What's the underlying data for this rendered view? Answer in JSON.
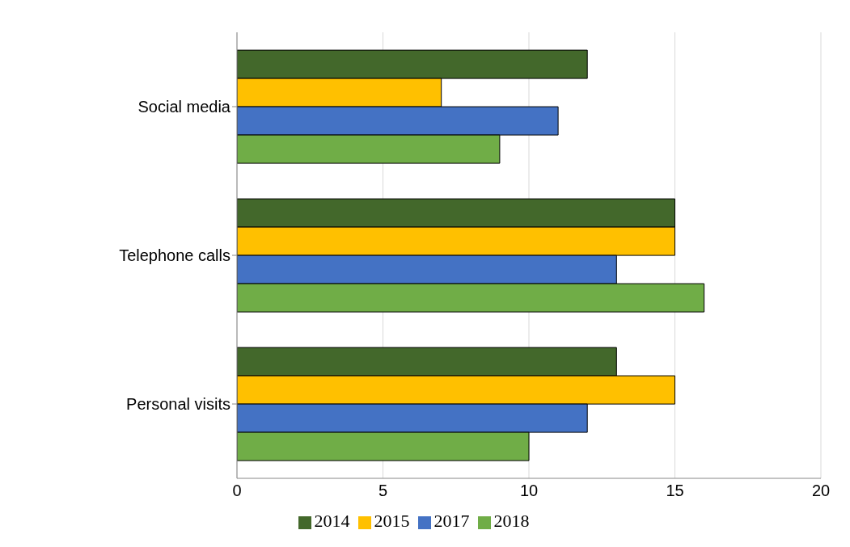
{
  "chart_data": {
    "type": "bar",
    "orientation": "horizontal",
    "categories": [
      "Social media",
      "Telephone calls",
      "Personal visits"
    ],
    "series": [
      {
        "name": "2014",
        "color": "#43682b",
        "values": [
          12,
          15,
          13
        ]
      },
      {
        "name": "2015",
        "color": "#ffc000",
        "values": [
          7,
          15,
          15
        ]
      },
      {
        "name": "2017",
        "color": "#4472c4",
        "values": [
          11,
          13,
          12
        ]
      },
      {
        "name": "2018",
        "color": "#70ad47",
        "values": [
          9,
          16,
          10
        ]
      }
    ],
    "xlim": [
      0,
      20
    ],
    "xticks": [
      0,
      5,
      10,
      15,
      20
    ],
    "grid": "x",
    "legend": "bottom"
  }
}
